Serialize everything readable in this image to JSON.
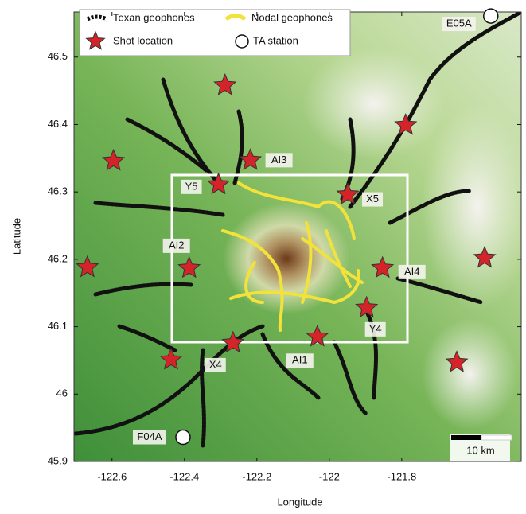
{
  "axes": {
    "xlabel": "Longitude",
    "ylabel": "Latitude",
    "xlim": [
      -122.705,
      -121.47
    ],
    "ylim": [
      45.9,
      46.567
    ],
    "xticks": [
      -122.6,
      -122.4,
      -122.2,
      -122,
      -121.8
    ],
    "yticks": [
      45.9,
      46,
      46.1,
      46.2,
      46.3,
      46.4,
      46.5
    ]
  },
  "legend": [
    "Texan geophones",
    "Nodal geophones",
    "Shot location",
    "TA station"
  ],
  "shots": [
    {
      "lon": -122.288,
      "lat": 46.458
    },
    {
      "lon": -121.789,
      "lat": 46.399
    },
    {
      "lon": -122.596,
      "lat": 46.346
    },
    {
      "lon": -122.218,
      "lat": 46.347,
      "label": "AI3"
    },
    {
      "lon": -122.306,
      "lat": 46.311,
      "label": "Y5"
    },
    {
      "lon": -121.949,
      "lat": 46.296,
      "label": "X5"
    },
    {
      "lon": -122.668,
      "lat": 46.188
    },
    {
      "lon": -122.387,
      "lat": 46.187,
      "label": "AI2"
    },
    {
      "lon": -121.853,
      "lat": 46.187,
      "label": "AI4"
    },
    {
      "lon": -121.571,
      "lat": 46.202
    },
    {
      "lon": -121.897,
      "lat": 46.128,
      "label": "Y4"
    },
    {
      "lon": -122.033,
      "lat": 46.085,
      "label": "AI1"
    },
    {
      "lon": -122.266,
      "lat": 46.076,
      "label": "X4"
    },
    {
      "lon": -122.437,
      "lat": 46.051
    },
    {
      "lon": -121.648,
      "lat": 46.047
    }
  ],
  "stations": [
    {
      "name": "E05A",
      "lon": -121.554,
      "lat": 46.561
    },
    {
      "name": "F04A",
      "lon": -122.404,
      "lat": 45.936
    }
  ],
  "scale_bar": "10 km"
}
